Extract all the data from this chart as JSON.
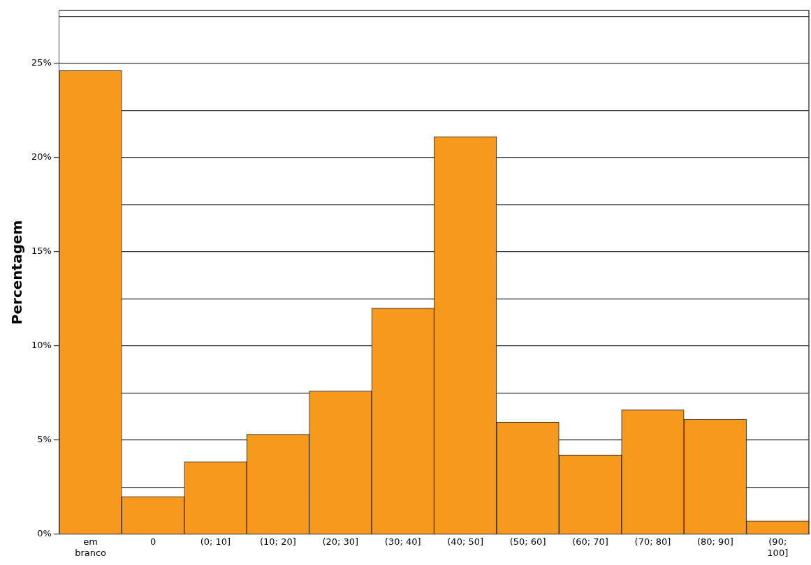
{
  "chart_data": {
    "type": "bar",
    "ylabel": "Percentagem",
    "categories": [
      "em branco",
      "0",
      "(0; 10]",
      "(10; 20]",
      "(20; 30]",
      "(30; 40]",
      "(40; 50]",
      "(50; 60]",
      "(60; 70]",
      "(70; 80]",
      "(80; 90]",
      "(90; 100]"
    ],
    "values": [
      24.6,
      2.0,
      3.85,
      5.3,
      7.6,
      12.0,
      21.1,
      5.95,
      4.2,
      6.6,
      6.1,
      0.7
    ],
    "color": "#f7991c",
    "ylim": [
      0,
      27.8
    ],
    "yticks": [
      {
        "value": 0,
        "label": "0%"
      },
      {
        "value": 2.5,
        "label": null
      },
      {
        "value": 5,
        "label": "5%"
      },
      {
        "value": 7.5,
        "label": null
      },
      {
        "value": 10,
        "label": "10%"
      },
      {
        "value": 12.5,
        "label": null
      },
      {
        "value": 15,
        "label": "15%"
      },
      {
        "value": 17.5,
        "label": null
      },
      {
        "value": 20,
        "label": "20%"
      },
      {
        "value": 22.5,
        "label": null
      },
      {
        "value": 25,
        "label": "25%"
      },
      {
        "value": 27.5,
        "label": null
      }
    ],
    "grid": "y",
    "legend": false
  }
}
